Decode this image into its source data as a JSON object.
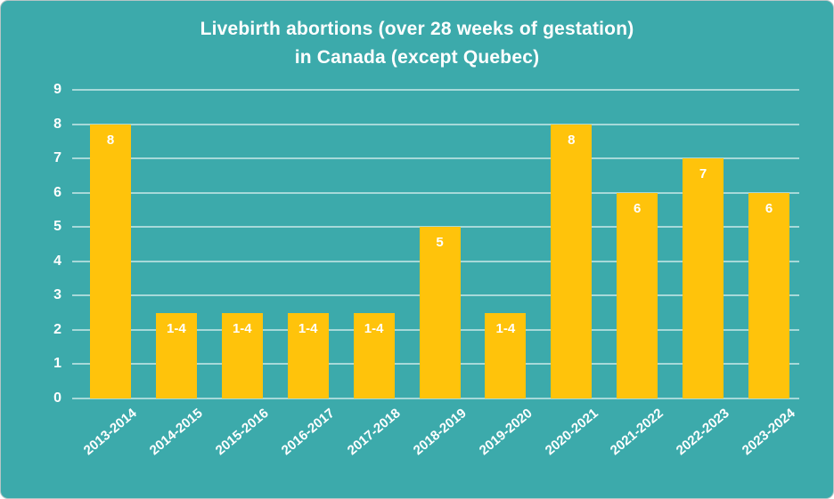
{
  "card": {
    "background_color": "#3CAAAB",
    "border_color": "#B6C5C6"
  },
  "chart_data": {
    "type": "bar",
    "title": "Livebirth abortions (over 28 weeks of gestation) in Canada (except Quebec)",
    "title_line1": "Livebirth abortions (over 28 weeks of gestation)",
    "title_line2": "in Canada (except Quebec)",
    "xlabel": "",
    "ylabel": "",
    "categories": [
      "2013-2014",
      "2014-2015",
      "2015-2016",
      "2016-2017",
      "2017-2018",
      "2018-2019",
      "2019-2020",
      "2020-2021",
      "2021-2022",
      "2022-2023",
      "2023-2024"
    ],
    "values": [
      8,
      2.5,
      2.5,
      2.5,
      2.5,
      5,
      2.5,
      8,
      6,
      7,
      6
    ],
    "bar_labels": [
      "8",
      "1-4",
      "1-4",
      "1-4",
      "1-4",
      "5",
      "1-4",
      "8",
      "6",
      "7",
      "6"
    ],
    "y_ticks": [
      0,
      1,
      2,
      3,
      4,
      5,
      6,
      7,
      8,
      9
    ],
    "ylim": [
      0,
      9
    ],
    "grid": true,
    "legend": false,
    "bar_color": "#FFC30B",
    "text_color": "#FFFFFF",
    "gridline_color": "rgba(255,255,255,0.55)"
  }
}
